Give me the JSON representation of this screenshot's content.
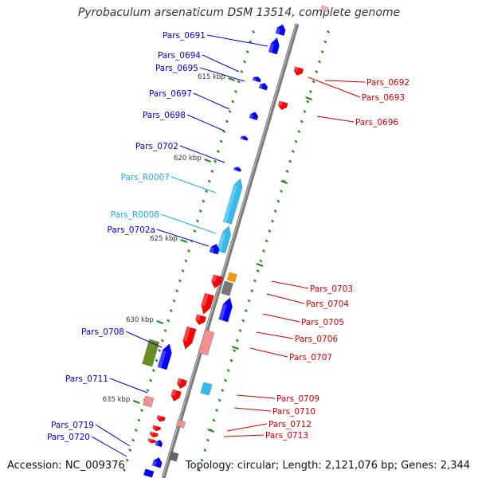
{
  "title": "Pyrobaculum arsenaticum DSM 13514, complete genome",
  "footer": {
    "accession": "Accession: NC_009376",
    "summary": "Topology: circular; Length: 2,121,076 bp; Genes: 2,344"
  },
  "colors": {
    "backbone": "#808080",
    "forward_gene": "#ff0000",
    "reverse_gene": "#0000ff",
    "rna": "#33bbee",
    "tick": "#228822",
    "pink": "#f09090",
    "olive": "#6b8e23",
    "orange": "#ff9900",
    "grey_feature": "#666666"
  },
  "kbp_ticks": [
    "615 kbp",
    "620 kbp",
    "625 kbp",
    "630 kbp",
    "635 kbp"
  ],
  "left_labels": [
    {
      "text": "Pars_0691",
      "color": "#0000cc"
    },
    {
      "text": "Pars_0694",
      "color": "#0000cc"
    },
    {
      "text": "Pars_0695",
      "color": "#0000cc"
    },
    {
      "text": "Pars_0697",
      "color": "#0000cc"
    },
    {
      "text": "Pars_0698",
      "color": "#0000cc"
    },
    {
      "text": "Pars_0702",
      "color": "#0000cc"
    },
    {
      "text": "Pars_R0007",
      "color": "#22aadd"
    },
    {
      "text": "Pars_R0008",
      "color": "#22aadd"
    },
    {
      "text": "Pars_0702a",
      "color": "#0000cc"
    },
    {
      "text": "Pars_0708",
      "color": "#0000cc"
    },
    {
      "text": "Pars_0711",
      "color": "#0000cc"
    },
    {
      "text": "Pars_0719",
      "color": "#0000cc"
    },
    {
      "text": "Pars_0720",
      "color": "#0000cc"
    }
  ],
  "right_labels": [
    {
      "text": "Pars_0692",
      "color": "#cc0000"
    },
    {
      "text": "Pars_0693",
      "color": "#cc0000"
    },
    {
      "text": "Pars_0696",
      "color": "#cc0000"
    },
    {
      "text": "Pars_0703",
      "color": "#cc0000"
    },
    {
      "text": "Pars_0704",
      "color": "#cc0000"
    },
    {
      "text": "Pars_0705",
      "color": "#cc0000"
    },
    {
      "text": "Pars_0706",
      "color": "#cc0000"
    },
    {
      "text": "Pars_0707",
      "color": "#cc0000"
    },
    {
      "text": "Pars_0709",
      "color": "#cc0000"
    },
    {
      "text": "Pars_0710",
      "color": "#cc0000"
    },
    {
      "text": "Pars_0712",
      "color": "#cc0000"
    },
    {
      "text": "Pars_0713",
      "color": "#cc0000"
    }
  ]
}
